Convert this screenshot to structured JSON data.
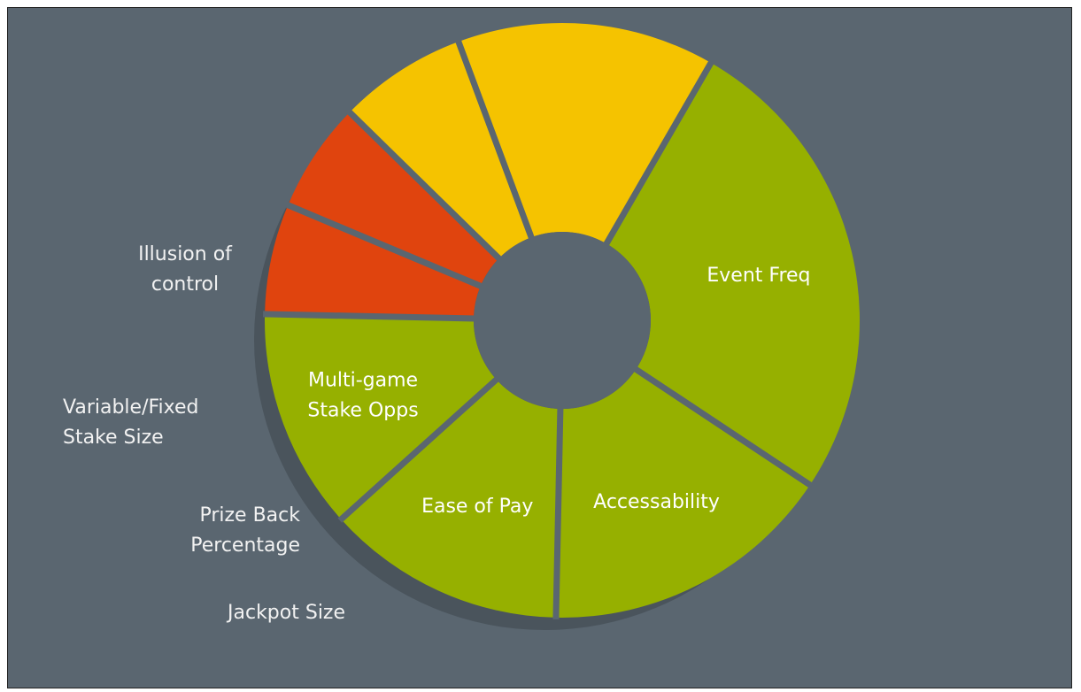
{
  "colors": {
    "background": "#5a6670",
    "shadow": "#4a545c",
    "divider": "#5a6670",
    "hole": "#5a6670",
    "green": "#96b000",
    "yellow": "#f5c300",
    "red": "#e0440e"
  },
  "chart_data": {
    "type": "pie",
    "variant": "donut",
    "slices": [
      {
        "label": "Event Freq",
        "lines": [
          "Event Freq"
        ],
        "value": 26,
        "color": "#96b000",
        "label_position": "inside"
      },
      {
        "label": "Accessability",
        "lines": [
          "Accessability"
        ],
        "value": 16,
        "color": "#96b000",
        "label_position": "inside"
      },
      {
        "label": "Ease of Pay",
        "lines": [
          "Ease of Pay"
        ],
        "value": 13,
        "color": "#96b000",
        "label_position": "inside"
      },
      {
        "label": "Multi-game Stake Opps",
        "lines": [
          "Multi-game",
          "Stake Opps"
        ],
        "value": 12,
        "color": "#96b000",
        "label_position": "inside"
      },
      {
        "label": "Jackpot Size",
        "lines": [
          "Jackpot Size"
        ],
        "value": 6,
        "color": "#e0440e",
        "label_position": "outside"
      },
      {
        "label": "Prize Back Percentage",
        "lines": [
          "Prize Back",
          "Percentage"
        ],
        "value": 6,
        "color": "#e0440e",
        "label_position": "outside"
      },
      {
        "label": "Variable/Fixed Stake Size",
        "lines": [
          "Variable/Fixed",
          "Stake Size"
        ],
        "value": 7,
        "color": "#f5c300",
        "label_position": "outside"
      },
      {
        "label": "Illusion of control",
        "lines": [
          "Illusion of",
          "control"
        ],
        "value": 14,
        "color": "#f5c300",
        "label_position": "outside"
      }
    ]
  }
}
